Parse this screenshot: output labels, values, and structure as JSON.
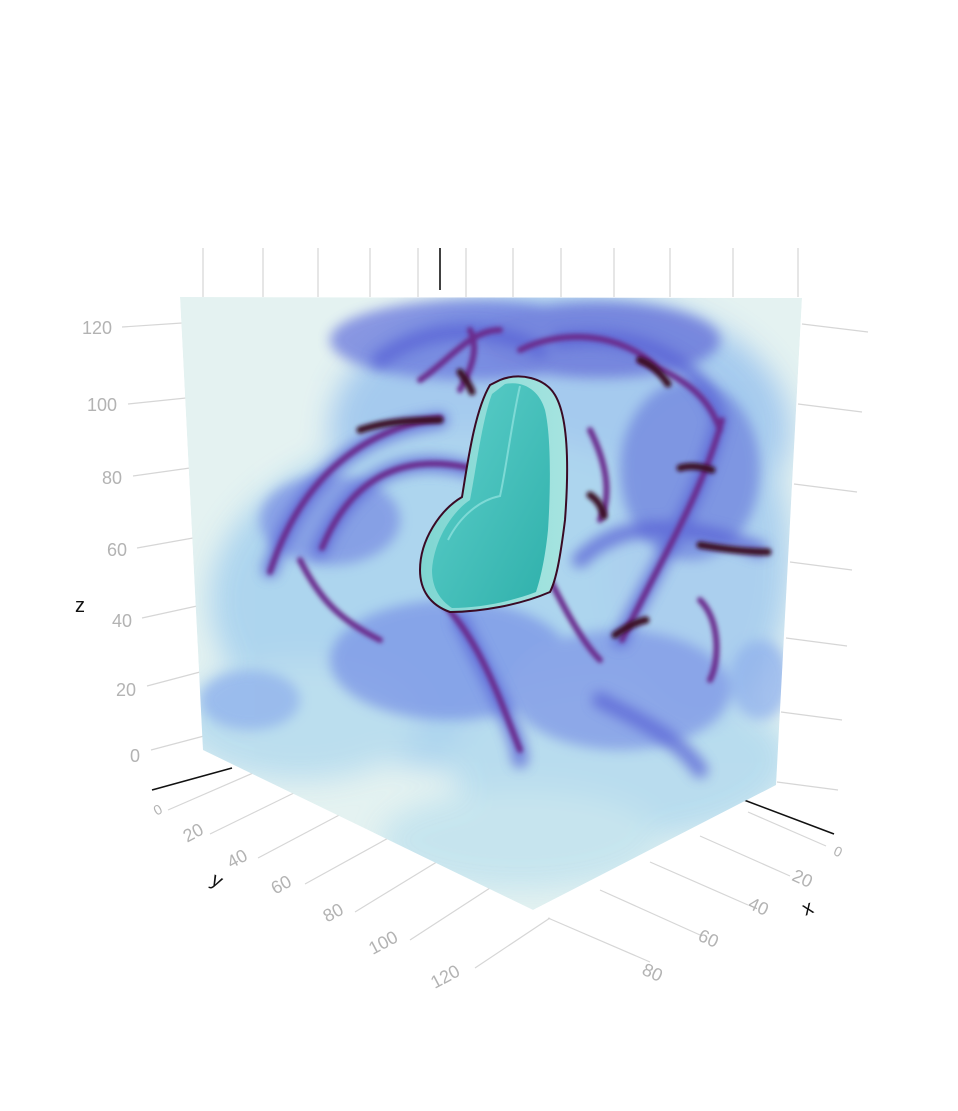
{
  "chart_data": {
    "type": "volume",
    "title": "",
    "axes": {
      "x": {
        "label": "x",
        "ticks": [
          "0",
          "20",
          "40",
          "60",
          "80"
        ],
        "range": [
          0,
          128
        ]
      },
      "y": {
        "label": "y",
        "ticks": [
          "0",
          "20",
          "40",
          "60",
          "80",
          "100",
          "120"
        ],
        "range": [
          0,
          128
        ]
      },
      "z": {
        "label": "z",
        "ticks": [
          "0",
          "20",
          "40",
          "60",
          "80",
          "100",
          "120"
        ],
        "range": [
          0,
          128
        ]
      }
    },
    "grid": true,
    "colorscale": [
      "#e4f2f1",
      "#bfe3ea",
      "#7eb6ec",
      "#5a63d6",
      "#6b2a8c",
      "#3a0a24"
    ],
    "isosurface_color": "#3fbdb8"
  }
}
